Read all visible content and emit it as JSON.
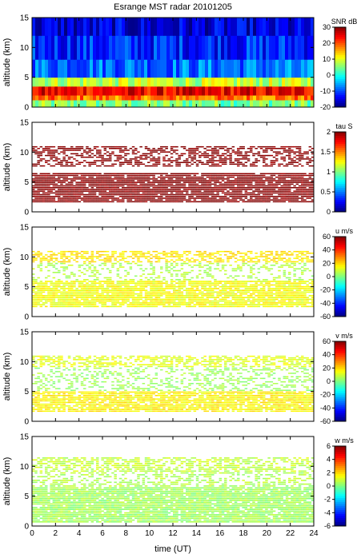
{
  "chart_data": {
    "type": "heatmap",
    "title": "Esrange MST radar 20101205",
    "x": {
      "label": "time (UT)",
      "range": [
        0,
        24
      ],
      "ticks": [
        "0",
        "2",
        "4",
        "6",
        "8",
        "10",
        "12",
        "14",
        "16",
        "18",
        "20",
        "22",
        "24"
      ]
    },
    "panels": [
      {
        "id": "snr",
        "ylabel": "altitude (km)",
        "ylim": [
          0,
          15
        ],
        "yticks": [
          "0",
          "5",
          "10",
          "15"
        ],
        "colorbar": {
          "label": "SNR dB",
          "range": [
            -20,
            30
          ],
          "ticks": [
            "30",
            "20",
            "10",
            "0",
            "-10",
            "-20"
          ]
        },
        "fill": "full",
        "bands": [
          {
            "altitude_range": [
              0,
              1.2
            ],
            "value": 5
          },
          {
            "altitude_range": [
              1.2,
              2.0
            ],
            "value": 18
          },
          {
            "altitude_range": [
              2.0,
              3.5
            ],
            "value": 24
          },
          {
            "altitude_range": [
              3.5,
              5.0
            ],
            "value": 8
          },
          {
            "altitude_range": [
              5.0,
              8.0
            ],
            "value": -8
          },
          {
            "altitude_range": [
              8.0,
              12.0
            ],
            "value": -12
          },
          {
            "altitude_range": [
              12.0,
              15.0
            ],
            "value": -16
          }
        ]
      },
      {
        "id": "tau",
        "ylabel": "altitude (km)",
        "ylim": [
          0,
          15
        ],
        "yticks": [
          "0",
          "5",
          "10",
          "15"
        ],
        "colorbar": {
          "label": "tau S",
          "range": [
            0,
            2
          ],
          "ticks": [
            "2",
            "1.5",
            "1",
            "0.5",
            "0"
          ]
        },
        "fill": "sparse",
        "bands": [
          {
            "altitude_range": [
              1.5,
              6.5
            ],
            "value": 2,
            "density": 0.9
          },
          {
            "altitude_range": [
              7.5,
              11.0
            ],
            "value": 2,
            "density": 0.55
          }
        ]
      },
      {
        "id": "u",
        "ylabel": "altitude (km)",
        "ylim": [
          0,
          15
        ],
        "yticks": [
          "0",
          "5",
          "10",
          "15"
        ],
        "colorbar": {
          "label": "u m/s",
          "range": [
            -60,
            60
          ],
          "ticks": [
            "60",
            "40",
            "20",
            "0",
            "-20",
            "-40",
            "-60"
          ]
        },
        "fill": "sparse",
        "bands": [
          {
            "altitude_range": [
              1.5,
              6.0
            ],
            "value": 14,
            "density": 0.85
          },
          {
            "altitude_range": [
              6.0,
              9.0
            ],
            "value": 6,
            "density": 0.3
          },
          {
            "altitude_range": [
              9.0,
              11.0
            ],
            "value": 18,
            "density": 0.55
          }
        ]
      },
      {
        "id": "v",
        "ylabel": "altitude (km)",
        "ylim": [
          0,
          15
        ],
        "yticks": [
          "0",
          "5",
          "10",
          "15"
        ],
        "colorbar": {
          "label": "v m/s",
          "range": [
            -60,
            60
          ],
          "ticks": [
            "60",
            "40",
            "20",
            "0",
            "-20",
            "-40",
            "-60"
          ]
        },
        "fill": "sparse",
        "bands": [
          {
            "altitude_range": [
              1.5,
              5.0
            ],
            "value": 16,
            "density": 0.85
          },
          {
            "altitude_range": [
              5.0,
              9.0
            ],
            "value": 4,
            "density": 0.35
          },
          {
            "altitude_range": [
              9.0,
              11.0
            ],
            "value": 12,
            "density": 0.55
          }
        ]
      },
      {
        "id": "w",
        "ylabel": "altitude (km)",
        "ylim": [
          0,
          15
        ],
        "yticks": [
          "0",
          "5",
          "10",
          "15"
        ],
        "colorbar": {
          "label": "w m/s",
          "range": [
            -6,
            6
          ],
          "ticks": [
            "6",
            "4",
            "2",
            "0",
            "-2",
            "-4",
            "-6"
          ]
        },
        "fill": "sparse",
        "bands": [
          {
            "altitude_range": [
              0.5,
              6.5
            ],
            "value": 0.4,
            "density": 0.9
          },
          {
            "altitude_range": [
              6.5,
              9.0
            ],
            "value": 0.6,
            "density": 0.45
          },
          {
            "altitude_range": [
              9.0,
              11.5
            ],
            "value": 0.8,
            "density": 0.6
          }
        ]
      }
    ]
  }
}
